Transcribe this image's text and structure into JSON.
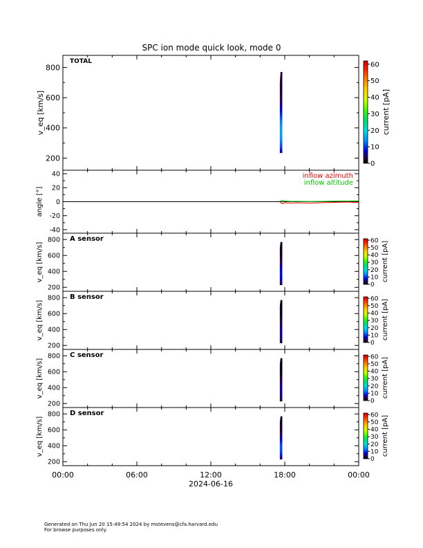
{
  "title": "SPC ion mode quick look, mode 0",
  "footer": {
    "line1": "Generated on Thu Jun 20 15:49:54 2024 by mstevens@cfa.harvard.edu",
    "line2": "For browse purposes only."
  },
  "chart_data": [
    {
      "type": "heatmap",
      "panel_label": "TOTAL",
      "ylabel": "v_eq [km/s]",
      "ylim": [
        120,
        880
      ],
      "yticks": [
        200,
        400,
        600,
        800
      ],
      "xlim": [
        0,
        24
      ],
      "colorbar": {
        "label": "current [pA]",
        "range": [
          0,
          62
        ],
        "ticks": [
          0,
          10,
          20,
          30,
          40,
          50,
          60
        ]
      },
      "data_span": {
        "x": [
          17.6,
          17.8
        ],
        "y": [
          235,
          770
        ],
        "peak_current_pA": 15
      }
    },
    {
      "type": "line",
      "ylabel": "angle [°]",
      "ylim": [
        -45,
        45
      ],
      "yticks": [
        -40,
        -20,
        0,
        20,
        40
      ],
      "xlim": [
        0,
        24
      ],
      "reference_line": 0,
      "series": [
        {
          "name": "inflow azimuth",
          "color": "#ff0000",
          "x": [
            17.6,
            17.8,
            18.0,
            18.5,
            19.0,
            20.0,
            21.0,
            22.0,
            23.0,
            24.0
          ],
          "y": [
            0,
            -3,
            -1.5,
            -2,
            -1.5,
            -2,
            -1.5,
            -1,
            -0.5,
            -1
          ]
        },
        {
          "name": "inflow altitude",
          "color": "#00cc00",
          "x": [
            17.6,
            17.8,
            18.0,
            18.5,
            19.0,
            20.0,
            21.0,
            22.0,
            23.0,
            24.0
          ],
          "y": [
            0.5,
            2,
            1,
            0.5,
            0.5,
            0.3,
            0.5,
            0.8,
            1,
            1.2
          ]
        }
      ]
    },
    {
      "type": "heatmap",
      "panel_label": "A sensor",
      "ylabel": "v_eq [km/s]",
      "ylim": [
        150,
        880
      ],
      "yticks": [
        200,
        400,
        600,
        800
      ],
      "xlim": [
        0,
        24
      ],
      "colorbar": {
        "label": "current [pA]",
        "range": [
          0,
          62
        ],
        "ticks": [
          0,
          10,
          20,
          30,
          40,
          50,
          60
        ]
      },
      "data_span": {
        "x": [
          17.6,
          17.8
        ],
        "y": [
          230,
          770
        ],
        "peak_current_pA": 8
      }
    },
    {
      "type": "heatmap",
      "panel_label": "B sensor",
      "ylabel": "v_eq [km/s]",
      "ylim": [
        150,
        880
      ],
      "yticks": [
        200,
        400,
        600,
        800
      ],
      "xlim": [
        0,
        24
      ],
      "colorbar": {
        "label": "current [pA]",
        "range": [
          0,
          62
        ],
        "ticks": [
          0,
          10,
          20,
          30,
          40,
          50,
          60
        ]
      },
      "data_span": {
        "x": [
          17.6,
          17.8
        ],
        "y": [
          230,
          770
        ],
        "peak_current_pA": 6
      }
    },
    {
      "type": "heatmap",
      "panel_label": "C sensor",
      "ylabel": "v_eq [km/s]",
      "ylim": [
        150,
        880
      ],
      "yticks": [
        200,
        400,
        600,
        800
      ],
      "xlim": [
        0,
        24
      ],
      "colorbar": {
        "label": "current [pA]",
        "range": [
          0,
          62
        ],
        "ticks": [
          0,
          10,
          20,
          30,
          40,
          50,
          60
        ]
      },
      "data_span": {
        "x": [
          17.6,
          17.8
        ],
        "y": [
          230,
          770
        ],
        "peak_current_pA": 6
      }
    },
    {
      "type": "heatmap",
      "panel_label": "D sensor",
      "ylabel": "v_eq [km/s]",
      "ylim": [
        150,
        880
      ],
      "yticks": [
        200,
        400,
        600,
        800
      ],
      "xlim": [
        0,
        24
      ],
      "colorbar": {
        "label": "current [pA]",
        "range": [
          0,
          62
        ],
        "ticks": [
          0,
          10,
          20,
          30,
          40,
          50,
          60
        ]
      },
      "data_span": {
        "x": [
          17.6,
          17.8
        ],
        "y": [
          230,
          770
        ],
        "peak_current_pA": 11
      }
    }
  ],
  "xaxis": {
    "ticks": [
      0,
      6,
      12,
      18,
      24
    ],
    "tick_labels": [
      "00:00",
      "06:00",
      "12:00",
      "18:00",
      "00:00"
    ],
    "date_label": "2024-06-16"
  }
}
